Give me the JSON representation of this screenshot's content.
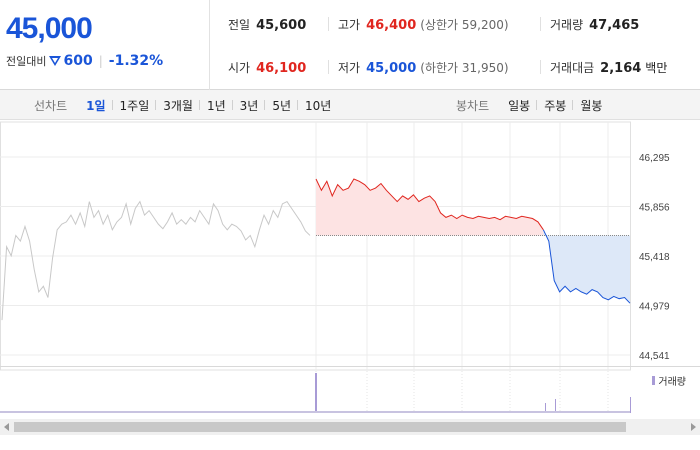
{
  "quote": {
    "price": "45,000",
    "change_label": "전일대비",
    "change": "600",
    "change_pct": "-1.32%"
  },
  "stats": [
    {
      "key": "prev_close",
      "label": "전일",
      "value": "45,600",
      "tone": "neutral",
      "limit_text": ""
    },
    {
      "key": "high",
      "label": "고가",
      "value": "46,400",
      "tone": "up",
      "limit_text": "(상한가 59,200)"
    },
    {
      "key": "volume",
      "label": "거래량",
      "value": "47,465",
      "tone": "neutral",
      "limit_text": ""
    },
    {
      "key": "open",
      "label": "시가",
      "value": "46,100",
      "tone": "up",
      "limit_text": ""
    },
    {
      "key": "low",
      "label": "저가",
      "value": "45,000",
      "tone": "dn",
      "limit_text": "(하한가 31,950)"
    },
    {
      "key": "amount",
      "label": "거래대금",
      "value": "2,164",
      "tone": "neutral",
      "limit_text": "백만"
    }
  ],
  "line_chart_tabs": {
    "title": "선차트",
    "items": [
      "1일",
      "1주일",
      "3개월",
      "1년",
      "3년",
      "5년",
      "10년"
    ],
    "active": "1일"
  },
  "candle_tabs": {
    "title": "봉차트",
    "items": [
      "일봉",
      "주봉",
      "월봉"
    ]
  },
  "volume_legend": "거래량",
  "colors": {
    "up": "#e0261f",
    "down": "#1a55d8",
    "prev_day_line": "#c8c8c8",
    "up_fill": "#fde3e3",
    "down_fill": "#dde8f8"
  },
  "chart_data": {
    "type": "line",
    "y_ticks": [
      "46,295",
      "45,856",
      "45,418",
      "44,979",
      "44,541"
    ],
    "ylim": [
      44541,
      46295
    ],
    "reference": 45600,
    "prev_day_series": [
      44850,
      45500,
      45420,
      45600,
      45550,
      45680,
      45550,
      45300,
      45100,
      45150,
      45050,
      45400,
      45650,
      45700,
      45720,
      45780,
      45700,
      45800,
      45680,
      45900,
      45760,
      45820,
      45700,
      45780,
      45650,
      45720,
      45760,
      45880,
      45700,
      45840,
      45900,
      45780,
      45820,
      45760,
      45700,
      45660,
      45720,
      45800,
      45700,
      45740,
      45700,
      45760,
      45720,
      45820,
      45760,
      45700,
      45880,
      45820,
      45700,
      45650,
      45700,
      45680,
      45640,
      45560,
      45600,
      45500,
      45650,
      45780,
      45700,
      45820,
      45760,
      45880,
      45900,
      45840,
      45780,
      45720,
      45640,
      45600
    ],
    "today_series": [
      46100,
      46000,
      46080,
      45950,
      46050,
      46000,
      46020,
      46100,
      46080,
      46050,
      46000,
      46020,
      46060,
      46000,
      45950,
      45900,
      45950,
      45920,
      45960,
      45900,
      45930,
      45950,
      45900,
      45800,
      45760,
      45780,
      45750,
      45780,
      45760,
      45750,
      45770,
      45760,
      45750,
      45760,
      45740,
      45770,
      45760,
      45750,
      45770,
      45760,
      45750,
      45720,
      45650,
      45550,
      45200,
      45100,
      45150,
      45100,
      45130,
      45100,
      45080,
      45120,
      45100,
      45050,
      45030,
      45060,
      45040,
      45050,
      45000
    ]
  }
}
